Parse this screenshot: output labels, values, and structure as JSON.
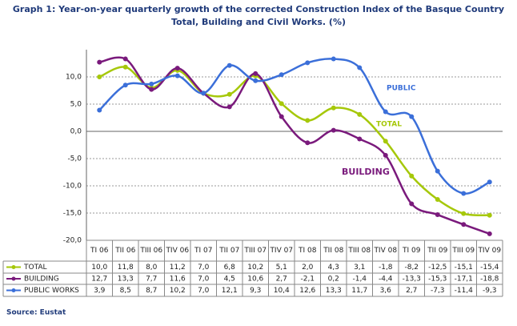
{
  "chart_data": {
    "type": "line",
    "title": "Graph 1: Year-on-year quarterly growth of the corrected Construction Index of the Basque Country Total, Building and Civil Works.  (%)",
    "categories": [
      "TI 06",
      "TII 06",
      "TIII 06",
      "TIV 06",
      "TI 07",
      "TII 07",
      "TIII 07",
      "TIV 07",
      "TI 08",
      "TII 08",
      "TIII 08",
      "TIV 08",
      "TI 09",
      "TII 09",
      "TIII 09",
      "TIV 09"
    ],
    "series": [
      {
        "name": "TOTAL",
        "color": "#a6c80a",
        "values": [
          10.0,
          11.8,
          8.0,
          11.2,
          7.0,
          6.8,
          10.2,
          5.1,
          2.0,
          4.3,
          3.1,
          -1.8,
          -8.2,
          -12.5,
          -15.1,
          -15.4
        ],
        "value_labels": [
          "10,0",
          "11,8",
          "8,0",
          "11,2",
          "7,0",
          "6,8",
          "10,2",
          "5,1",
          "2,0",
          "4,3",
          "3,1",
          "-1,8",
          "-8,2",
          "-12,5",
          "-15,1",
          "-15,4"
        ]
      },
      {
        "name": "BUILDING",
        "color": "#7a1a7c",
        "values": [
          12.7,
          13.3,
          7.7,
          11.6,
          7.0,
          4.5,
          10.6,
          2.7,
          -2.1,
          0.2,
          -1.4,
          -4.4,
          -13.3,
          -15.3,
          -17.1,
          -18.8
        ],
        "value_labels": [
          "12,7",
          "13,3",
          "7,7",
          "11,6",
          "7,0",
          "4,5",
          "10,6",
          "2,7",
          "-2,1",
          "0,2",
          "-1,4",
          "-4,4",
          "-13,3",
          "-15,3",
          "-17,1",
          "-18,8"
        ]
      },
      {
        "name": "PUBLIC WORKS",
        "color": "#3b6fd9",
        "values": [
          3.9,
          8.5,
          8.7,
          10.2,
          7.0,
          12.1,
          9.3,
          10.4,
          12.6,
          13.3,
          11.7,
          3.6,
          2.7,
          -7.3,
          -11.4,
          -9.3
        ],
        "value_labels": [
          "3,9",
          "8,5",
          "8,7",
          "10,2",
          "7,0",
          "12,1",
          "9,3",
          "10,4",
          "12,6",
          "13,3",
          "11,7",
          "3,6",
          "2,7",
          "-7,3",
          "-11,4",
          "-9,3"
        ]
      }
    ],
    "annotations": [
      "PUBLIC",
      "TOTAL",
      "BUILDING"
    ],
    "ylim": [
      -20,
      15
    ],
    "yticks": [
      {
        "value": -20,
        "label": "-20,0"
      },
      {
        "value": -15,
        "label": "-15,0"
      },
      {
        "value": -10,
        "label": "-10,0"
      },
      {
        "value": -5,
        "label": "-5,0"
      },
      {
        "value": 0,
        "label": "0,0"
      },
      {
        "value": 5,
        "label": "5,0"
      },
      {
        "value": 10,
        "label": "10,0"
      }
    ],
    "grid": true,
    "source": "Source: Eustat"
  }
}
